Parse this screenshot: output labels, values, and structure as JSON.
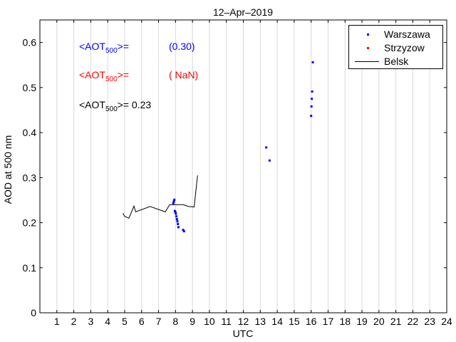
{
  "chart_data": {
    "type": "scatter",
    "title": "12–Apr–2019",
    "xlabel": "UTC",
    "ylabel": "AOD at 500 nm",
    "xlim": [
      0,
      24
    ],
    "ylim": [
      0,
      0.65
    ],
    "xticks": [
      1,
      2,
      3,
      4,
      5,
      6,
      7,
      8,
      9,
      10,
      11,
      12,
      13,
      14,
      15,
      16,
      17,
      18,
      19,
      20,
      21,
      22,
      23,
      24
    ],
    "yticks": [
      0,
      0.1,
      0.2,
      0.3,
      0.4,
      0.5,
      0.6
    ],
    "ytick_labels": [
      "0",
      "0.1",
      "0.2",
      "0.3",
      "0.4",
      "0.5",
      "0.6"
    ],
    "grid": "vertical",
    "legend_position": "top-right",
    "series": [
      {
        "name": "Warszawa",
        "type": "scatter",
        "color": "#0000ff",
        "x": [
          7.87,
          7.9,
          7.93,
          7.96,
          7.99,
          8.02,
          8.05,
          8.08,
          8.11,
          8.14,
          8.17,
          8.45,
          8.5,
          13.35,
          13.55,
          16.0,
          16.02,
          16.04,
          16.06,
          16.1
        ],
        "y": [
          0.243,
          0.247,
          0.251,
          0.226,
          0.224,
          0.22,
          0.214,
          0.208,
          0.203,
          0.197,
          0.19,
          0.184,
          0.181,
          0.367,
          0.338,
          0.437,
          0.458,
          0.475,
          0.491,
          0.556
        ]
      },
      {
        "name": "Strzyzow",
        "type": "scatter",
        "color": "#ff0000",
        "x": [],
        "y": []
      },
      {
        "name": "Belsk",
        "type": "line",
        "color": "#000000",
        "x": [
          4.9,
          5.0,
          5.25,
          5.55,
          5.65,
          6.5,
          7.4,
          7.65,
          8.45,
          8.75,
          9.1,
          9.3
        ],
        "y": [
          0.221,
          0.214,
          0.21,
          0.237,
          0.224,
          0.236,
          0.224,
          0.24,
          0.24,
          0.236,
          0.235,
          0.305
        ]
      }
    ],
    "annotations": [
      {
        "prefix": "<AOT",
        "sub": "500",
        "suffix": ">=",
        "value": "(0.30)",
        "color": "#0000ff"
      },
      {
        "prefix": "<AOT",
        "sub": "500",
        "suffix": ">=",
        "value": "( NaN)",
        "color": "#ff0000"
      },
      {
        "prefix": "<AOT",
        "sub": "500",
        "suffix": ">=",
        "value": "0.23",
        "color": "#000000"
      }
    ]
  }
}
